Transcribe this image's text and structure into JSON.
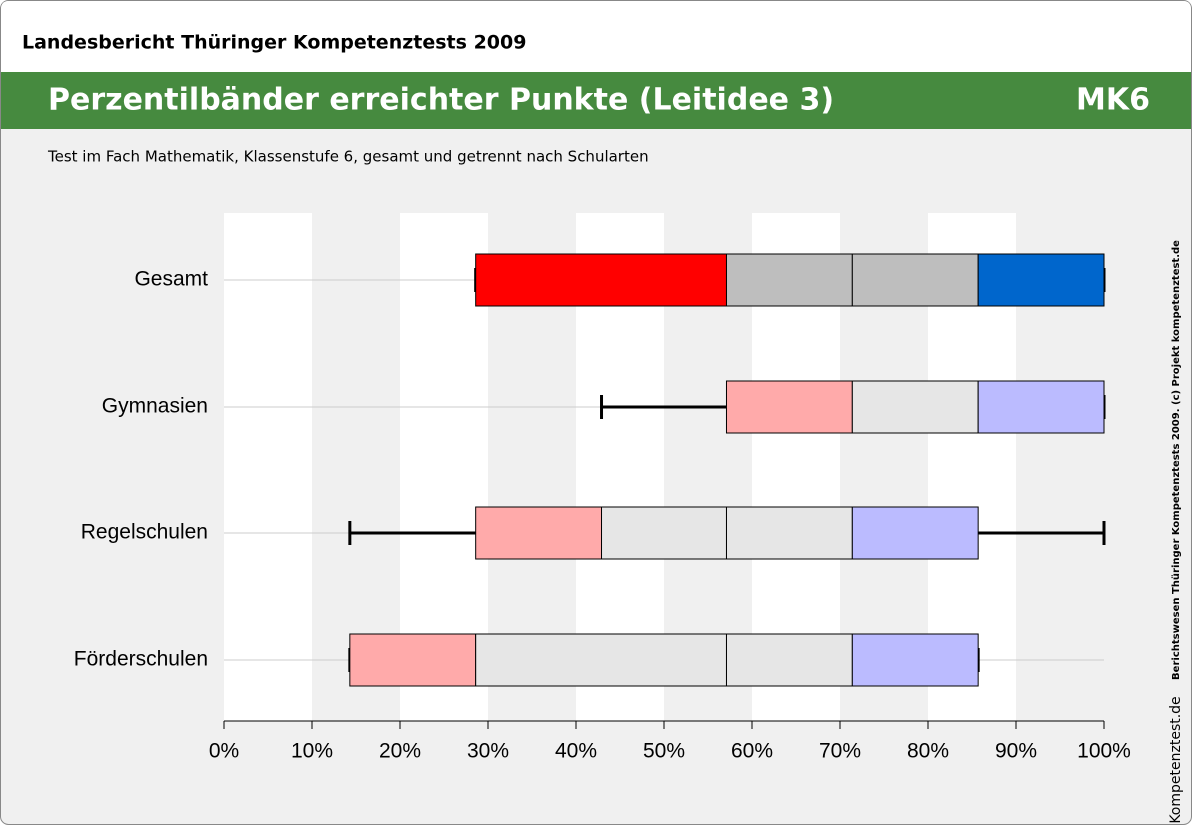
{
  "header": {
    "report": "Landesbericht Thüringer Kompetenztests 2009",
    "title": "Perzentilbänder erreichter Punkte (Leitidee 3)",
    "code": "MK6",
    "subtitle": "Test im Fach Mathematik, Klassenstufe 6, gesamt und getrennt nach Schularten"
  },
  "credit": "Berichtswesen Thüringer Kompetenztests 2009. (c) Projekt kompetenztest.de",
  "logo": "Kompetenztest.de",
  "chart_data": {
    "type": "percentile_band",
    "categories": [
      "Gesamt",
      "Gymnasien",
      "Regelschulen",
      "Förderschulen"
    ],
    "values": [
      [
        28.6,
        28.6,
        57.1,
        71.4,
        85.7,
        100,
        100
      ],
      [
        42.9,
        57.1,
        71.4,
        71.4,
        85.7,
        100,
        100
      ],
      [
        14.3,
        28.6,
        42.9,
        57.1,
        71.4,
        85.7,
        100
      ],
      [
        14.3,
        14.3,
        28.6,
        57.1,
        71.4,
        85.7,
        85.7
      ]
    ],
    "colors": [
      [
        "#ff0000",
        "#bebebe",
        "#bebebe",
        "#0066cc"
      ],
      [
        "#ffaaaa",
        "#e6e6e6",
        "#e6e6e6",
        "#bbbbff"
      ],
      [
        "#ffaaaa",
        "#e6e6e6",
        "#e6e6e6",
        "#bbbbff"
      ],
      [
        "#ffaaaa",
        "#e6e6e6",
        "#e6e6e6",
        "#bbbbff"
      ]
    ],
    "xlim": [
      0,
      100
    ],
    "xticks": [
      {
        "value": 0,
        "label": "0%"
      },
      {
        "value": 10,
        "label": "10%"
      },
      {
        "value": 20,
        "label": "20%"
      },
      {
        "value": 30,
        "label": "30%"
      },
      {
        "value": 40,
        "label": "40%"
      },
      {
        "value": 50,
        "label": "50%"
      },
      {
        "value": 60,
        "label": "60%"
      },
      {
        "value": 70,
        "label": "70%"
      },
      {
        "value": 80,
        "label": "80%"
      },
      {
        "value": 90,
        "label": "90%"
      },
      {
        "value": 100,
        "label": "100%"
      }
    ]
  }
}
